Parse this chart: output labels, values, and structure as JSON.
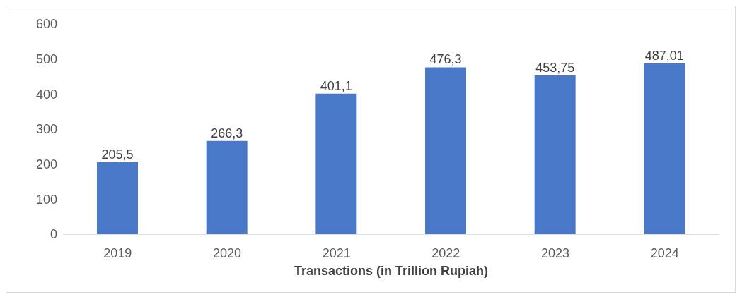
{
  "chart_data": {
    "type": "bar",
    "xlabel": "Transactions (in Trillion Rupiah)",
    "categories": [
      "2019",
      "2020",
      "2021",
      "2022",
      "2023",
      "2024"
    ],
    "values": [
      205.5,
      266.3,
      401.1,
      476.3,
      453.75,
      487.01
    ],
    "value_labels": [
      "205,5",
      "266,3",
      "401,1",
      "476,3",
      "453,75",
      "487,01"
    ],
    "color": "#4a78c8",
    "ylim": [
      0,
      600
    ],
    "yticks": [
      0,
      100,
      200,
      300,
      400,
      500,
      600
    ],
    "grid": false,
    "legend": false
  }
}
